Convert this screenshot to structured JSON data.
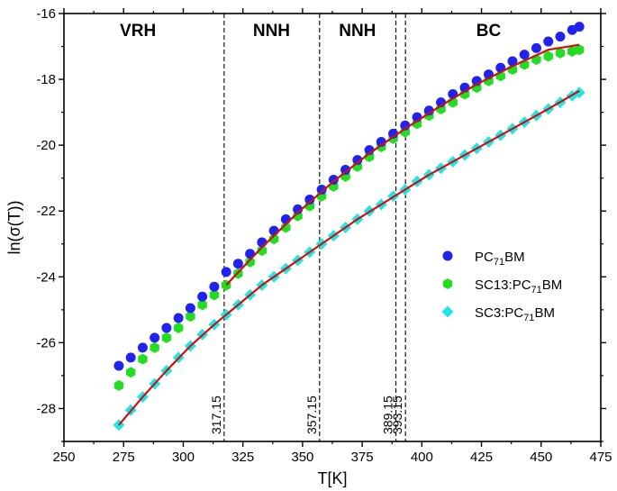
{
  "chart_data": {
    "type": "scatter",
    "title": "",
    "xlabel": "T[K]",
    "ylabel": "ln(σ(T))",
    "xlim": [
      250,
      475
    ],
    "ylim": [
      -29,
      -16
    ],
    "xticks": [
      250,
      275,
      300,
      325,
      350,
      375,
      400,
      425,
      450,
      475
    ],
    "xtick_labels": [
      "250",
      "275",
      "300",
      "325",
      "350",
      "375",
      "400",
      "425",
      "450",
      "475"
    ],
    "yticks": [
      -28,
      -26,
      -24,
      -22,
      -20,
      -18,
      -16
    ],
    "ytick_labels": [
      "-28",
      "-26",
      "-24",
      "-22",
      "-20",
      "-18",
      "-16"
    ],
    "grid": false,
    "legend_position": "right",
    "regions": [
      {
        "label": "VRH",
        "x": 281
      },
      {
        "label": "NNH",
        "x": 337
      },
      {
        "label": "NNH",
        "x": 373
      },
      {
        "label": "BC",
        "x": 428
      }
    ],
    "boundaries": [
      {
        "x": 317.15,
        "label": "317.15"
      },
      {
        "x": 357.15,
        "label": "357.15"
      },
      {
        "x": 389.15,
        "label": "389.15"
      },
      {
        "x": 393.15,
        "label": "393.15"
      }
    ],
    "series": [
      {
        "name": "PC71BM",
        "legend_main": "PC",
        "legend_sub": "71",
        "legend_tail": "BM",
        "marker": "circle",
        "color": "#2222ee",
        "x": [
          273,
          278,
          283,
          288,
          293,
          298,
          303,
          308,
          313,
          318,
          323,
          328,
          333,
          338,
          343,
          348,
          353,
          358,
          363,
          368,
          373,
          378,
          383,
          388,
          393,
          398,
          403,
          408,
          413,
          418,
          423,
          428,
          433,
          438,
          443,
          448,
          453,
          458,
          463,
          466
        ],
        "y": [
          -26.7,
          -26.45,
          -26.15,
          -25.85,
          -25.55,
          -25.25,
          -24.95,
          -24.6,
          -24.3,
          -23.85,
          -23.6,
          -23.3,
          -22.95,
          -22.6,
          -22.25,
          -21.95,
          -21.65,
          -21.35,
          -21.05,
          -20.75,
          -20.45,
          -20.15,
          -19.9,
          -19.65,
          -19.4,
          -19.15,
          -18.95,
          -18.7,
          -18.45,
          -18.25,
          -18.05,
          -17.85,
          -17.65,
          -17.45,
          -17.25,
          -17.05,
          -16.85,
          -16.7,
          -16.5,
          -16.4
        ]
      },
      {
        "name": "SC13:PC71BM",
        "legend_main": "SC13:PC",
        "legend_sub": "71",
        "legend_tail": "BM",
        "marker": "hexagon",
        "color": "#22dd22",
        "x": [
          273,
          278,
          283,
          288,
          293,
          298,
          303,
          308,
          313,
          318,
          323,
          328,
          333,
          338,
          343,
          348,
          353,
          358,
          363,
          368,
          373,
          378,
          383,
          388,
          393,
          398,
          403,
          408,
          413,
          418,
          423,
          428,
          433,
          438,
          443,
          448,
          453,
          458,
          463,
          466
        ],
        "y": [
          -27.3,
          -26.9,
          -26.5,
          -26.15,
          -25.85,
          -25.55,
          -25.2,
          -24.85,
          -24.55,
          -24.25,
          -23.9,
          -23.55,
          -23.2,
          -22.85,
          -22.5,
          -22.15,
          -21.85,
          -21.55,
          -21.25,
          -20.95,
          -20.65,
          -20.35,
          -20.05,
          -19.8,
          -19.6,
          -19.35,
          -19.1,
          -18.9,
          -18.7,
          -18.45,
          -18.25,
          -18.05,
          -17.9,
          -17.7,
          -17.55,
          -17.4,
          -17.3,
          -17.2,
          -17.15,
          -17.1
        ]
      },
      {
        "name": "SC3:PC71BM",
        "legend_main": "SC3:PC",
        "legend_sub": "71",
        "legend_tail": "BM",
        "marker": "diamond",
        "color": "#22e5e5",
        "x": [
          273,
          278,
          283,
          288,
          293,
          298,
          303,
          308,
          313,
          318,
          323,
          328,
          333,
          338,
          343,
          348,
          353,
          358,
          363,
          368,
          373,
          378,
          383,
          388,
          393,
          398,
          403,
          408,
          413,
          418,
          423,
          428,
          433,
          438,
          443,
          448,
          453,
          458,
          463,
          466
        ],
        "y": [
          -28.5,
          -28.05,
          -27.65,
          -27.25,
          -26.85,
          -26.45,
          -26.1,
          -25.75,
          -25.45,
          -25.15,
          -24.85,
          -24.55,
          -24.25,
          -24.0,
          -23.75,
          -23.5,
          -23.25,
          -23.0,
          -22.75,
          -22.5,
          -22.25,
          -22.0,
          -21.8,
          -21.55,
          -21.35,
          -21.1,
          -20.9,
          -20.7,
          -20.5,
          -20.3,
          -20.1,
          -19.9,
          -19.7,
          -19.5,
          -19.3,
          -19.1,
          -18.9,
          -18.7,
          -18.5,
          -18.4
        ]
      }
    ],
    "fits": [
      {
        "name": "fit-pc71bm",
        "color": "#cc1111",
        "x": [
          318,
          333,
          348,
          363,
          378,
          393,
          408,
          423,
          438,
          453,
          466
        ],
        "y": [
          -24.25,
          -23.1,
          -22.05,
          -21.1,
          -20.25,
          -19.5,
          -18.8,
          -18.15,
          -17.6,
          -17.1,
          -16.95
        ]
      },
      {
        "name": "fit-sc3-pc71bm",
        "color": "#cc1111",
        "x": [
          273,
          283,
          293,
          303,
          313,
          323,
          333,
          343,
          353,
          363,
          373,
          383,
          393,
          403,
          413,
          423,
          433,
          443,
          453,
          466
        ],
        "y": [
          -28.5,
          -27.65,
          -26.85,
          -26.1,
          -25.45,
          -24.85,
          -24.25,
          -23.75,
          -23.25,
          -22.75,
          -22.25,
          -21.8,
          -21.35,
          -20.9,
          -20.5,
          -20.1,
          -19.7,
          -19.3,
          -18.9,
          -18.35
        ]
      }
    ]
  }
}
